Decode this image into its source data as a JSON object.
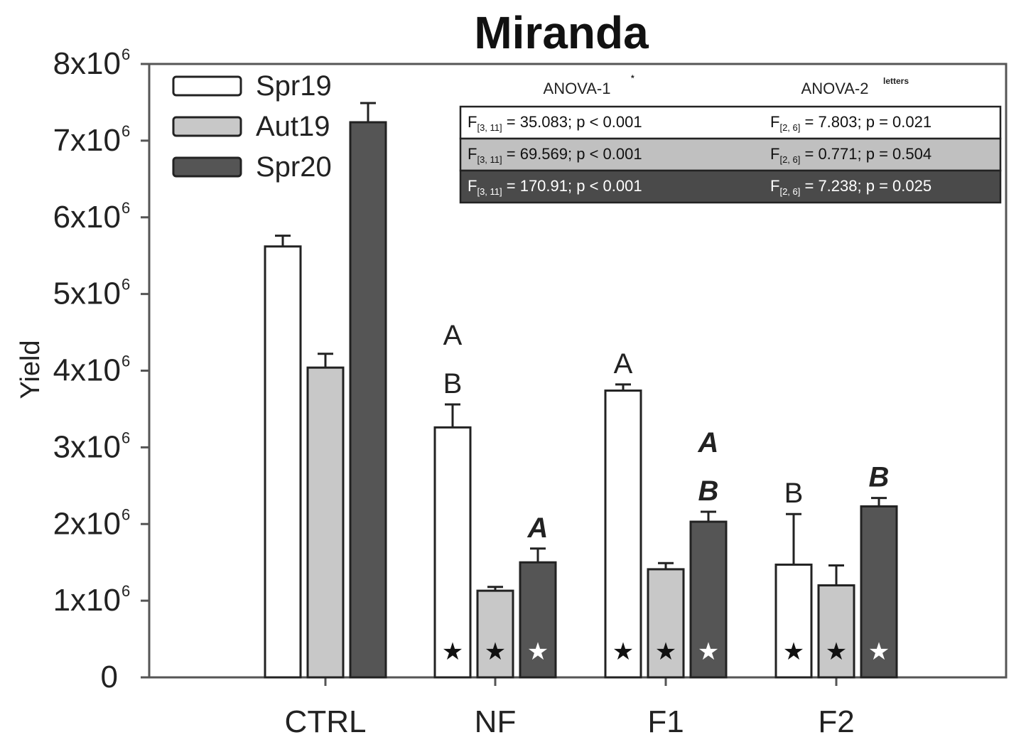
{
  "chart_data": {
    "type": "bar",
    "title": "Miranda",
    "xlabel": "",
    "ylabel": "Yield",
    "ylim": [
      0,
      8000000
    ],
    "yticks": [
      {
        "value": 0,
        "base": "0",
        "exp": ""
      },
      {
        "value": 1000000,
        "base": "1x10",
        "exp": "6"
      },
      {
        "value": 2000000,
        "base": "2x10",
        "exp": "6"
      },
      {
        "value": 3000000,
        "base": "3x10",
        "exp": "6"
      },
      {
        "value": 4000000,
        "base": "4x10",
        "exp": "6"
      },
      {
        "value": 5000000,
        "base": "5x10",
        "exp": "6"
      },
      {
        "value": 6000000,
        "base": "6x10",
        "exp": "6"
      },
      {
        "value": 7000000,
        "base": "7x10",
        "exp": "6"
      },
      {
        "value": 8000000,
        "base": "8x10",
        "exp": "6"
      }
    ],
    "categories": [
      "CTRL",
      "NF",
      "F1",
      "F2"
    ],
    "series": [
      {
        "name": "Spr19",
        "fill": "#ffffff",
        "star_color": "#111111",
        "values": [
          5620000,
          3260000,
          3740000,
          1470000
        ],
        "errors": [
          140000,
          300000,
          80000,
          660000
        ]
      },
      {
        "name": "Aut19",
        "fill": "#c8c8c8",
        "star_color": "#111111",
        "values": [
          4040000,
          1130000,
          1410000,
          1200000
        ],
        "errors": [
          180000,
          50000,
          80000,
          260000
        ]
      },
      {
        "name": "Spr20",
        "fill": "#555555",
        "star_color": "#ffffff",
        "values": [
          7240000,
          1500000,
          2030000,
          2230000
        ],
        "errors": [
          250000,
          180000,
          130000,
          110000
        ]
      }
    ],
    "significance_star": "★",
    "stars": [
      [
        false,
        false,
        false
      ],
      [
        true,
        true,
        true
      ],
      [
        true,
        true,
        true
      ],
      [
        true,
        true,
        true
      ]
    ],
    "letters": [
      {
        "category": 1,
        "series": 0,
        "text": [
          "A",
          "B"
        ],
        "style": "normal"
      },
      {
        "category": 2,
        "series": 0,
        "text": [
          "A"
        ],
        "style": "normal"
      },
      {
        "category": 3,
        "series": 0,
        "text": [
          "B"
        ],
        "style": "normal"
      },
      {
        "category": 1,
        "series": 2,
        "text": [
          "A"
        ],
        "style": "bold-italic"
      },
      {
        "category": 2,
        "series": 2,
        "text": [
          "A",
          "B"
        ],
        "style": "bold-italic"
      },
      {
        "category": 3,
        "series": 2,
        "text": [
          "B"
        ],
        "style": "bold-italic"
      }
    ],
    "legend_position": "top-left",
    "anova": {
      "head1": "ANOVA-1",
      "head1_sup": "*",
      "head2": "ANOVA-2",
      "head2_sup": "letters",
      "rows": [
        {
          "fill": "#ffffff",
          "text_color": "#111111",
          "col1_sub": "[3, 11]",
          "col1_rest": " = 35.083; p < 0.001",
          "col2_sub": "[2, 6]",
          "col2_rest": " = 7.803; p = 0.021"
        },
        {
          "fill": "#c0c0c0",
          "text_color": "#111111",
          "col1_sub": "[3, 11]",
          "col1_rest": " = 69.569; p < 0.001",
          "col2_sub": "[2, 6]",
          "col2_rest": " = 0.771; p = 0.504"
        },
        {
          "fill": "#4a4a4a",
          "text_color": "#ffffff",
          "col1_sub": "[3, 11]",
          "col1_rest": " = 170.91; p < 0.001",
          "col2_sub": "[2, 6]",
          "col2_rest": " = 7.238; p = 0.025"
        }
      ]
    }
  }
}
